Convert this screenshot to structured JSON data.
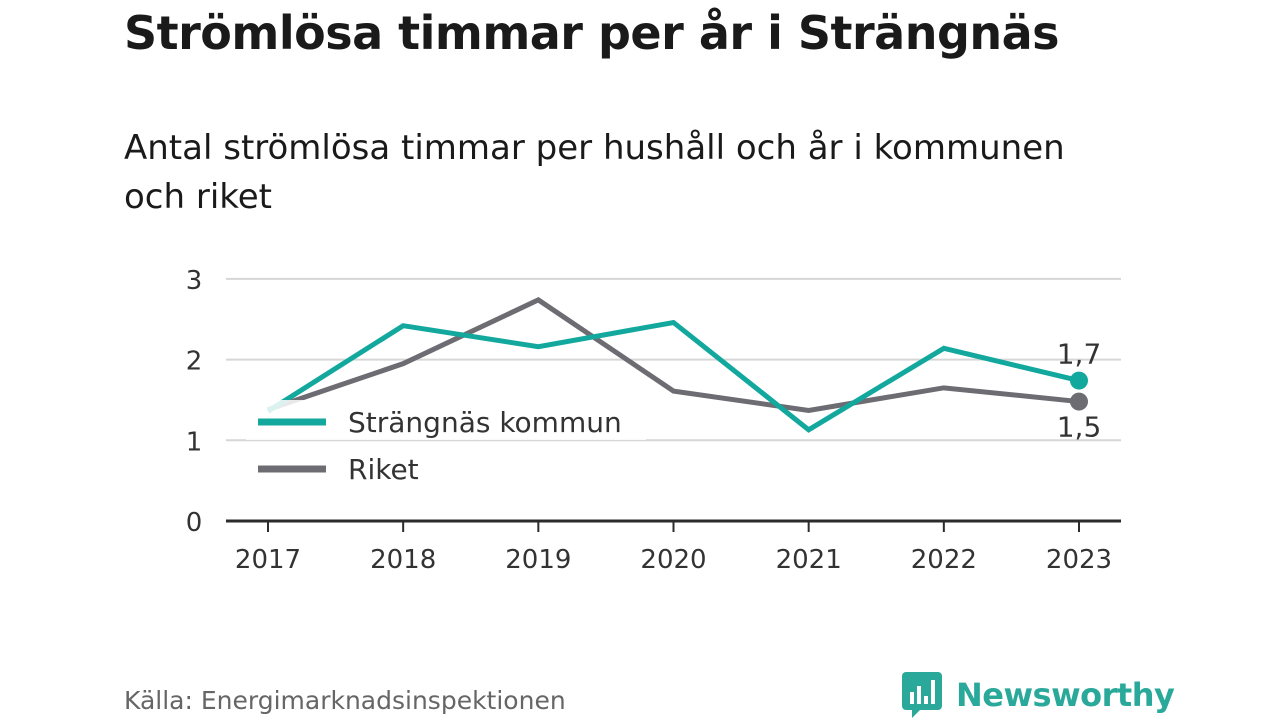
{
  "title": "Strömlösa timmar per år i Strängnäs",
  "subtitle": "Antal strömlösa timmar per hushåll och år i kommunen och riket",
  "source": "Källa: Energimarknadsinspektionen",
  "brand": "Newsworthy",
  "colors": {
    "accent": "#13a89e",
    "secondary": "#6d6c72",
    "grid": "#d6d6d6",
    "axis": "#2b2b2b",
    "brand": "#2aa99b"
  },
  "chart_data": {
    "type": "line",
    "categories": [
      "2017",
      "2018",
      "2019",
      "2020",
      "2021",
      "2022",
      "2023"
    ],
    "ylim": [
      0,
      3
    ],
    "yticks": [
      "0",
      "1",
      "2",
      "3"
    ],
    "grid": true,
    "legend_position": "left",
    "xlabel": "",
    "ylabel": "",
    "series": [
      {
        "name": "Strängnäs kommun",
        "color": "#13a89e",
        "values": [
          1.36,
          2.42,
          2.16,
          2.46,
          1.13,
          2.14,
          1.74
        ],
        "end_label": "1,7"
      },
      {
        "name": "Riket",
        "color": "#6d6c72",
        "values": [
          1.38,
          1.95,
          2.74,
          1.61,
          1.37,
          1.65,
          1.48
        ],
        "end_label": "1,5"
      }
    ]
  }
}
